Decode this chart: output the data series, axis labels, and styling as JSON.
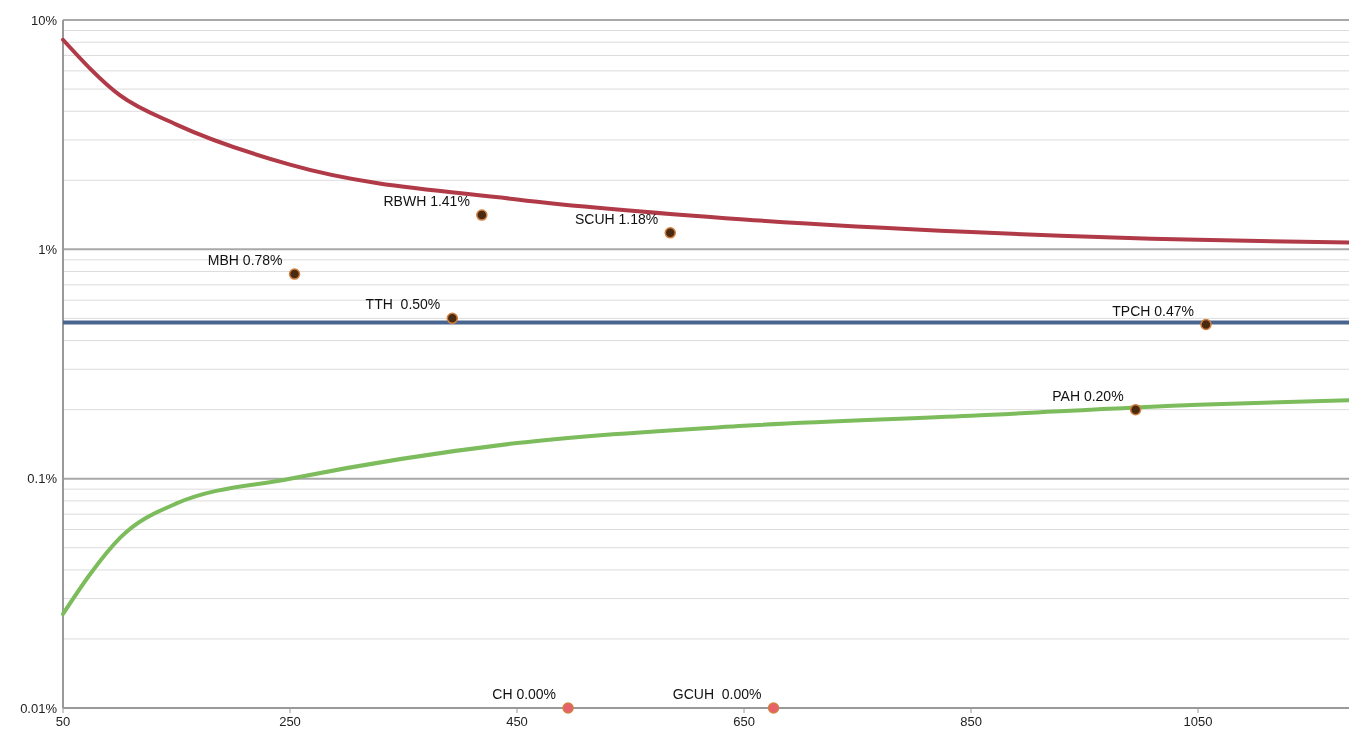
{
  "chart_data": {
    "type": "scatter",
    "log": "y",
    "grid": "y",
    "xlim": [
      50,
      1183
    ],
    "xticks": [
      50,
      250,
      450,
      650,
      850,
      1050
    ],
    "ylim": [
      0.01,
      10
    ],
    "yticks": [
      {
        "value": 0.01,
        "label": "0.01%"
      },
      {
        "value": 0.02,
        "label": null
      },
      {
        "value": 0.03,
        "label": null
      },
      {
        "value": 0.04,
        "label": null
      },
      {
        "value": 0.05,
        "label": null
      },
      {
        "value": 0.06,
        "label": null
      },
      {
        "value": 0.07,
        "label": null
      },
      {
        "value": 0.08,
        "label": null
      },
      {
        "value": 0.09,
        "label": null
      },
      {
        "value": 0.1,
        "label": "0.1%"
      },
      {
        "value": 0.2,
        "label": null
      },
      {
        "value": 0.3,
        "label": null
      },
      {
        "value": 0.4,
        "label": null
      },
      {
        "value": 0.5,
        "label": null
      },
      {
        "value": 0.6,
        "label": null
      },
      {
        "value": 0.7,
        "label": null
      },
      {
        "value": 0.8,
        "label": null
      },
      {
        "value": 0.9,
        "label": null
      },
      {
        "value": 1,
        "label": "1%"
      },
      {
        "value": 2,
        "label": null
      },
      {
        "value": 3,
        "label": null
      },
      {
        "value": 4,
        "label": null
      },
      {
        "value": 5,
        "label": null
      },
      {
        "value": 6,
        "label": null
      },
      {
        "value": 7,
        "label": null
      },
      {
        "value": 8,
        "label": null
      },
      {
        "value": 9,
        "label": null
      },
      {
        "value": 10,
        "label": "10%"
      }
    ],
    "ref_lines": [
      {
        "axis": "y",
        "value": 0.48,
        "color": "#4a6490"
      }
    ],
    "series": [
      {
        "type": "line",
        "color": "#b03a48",
        "marker": "none",
        "x": [
          50,
          100,
          150,
          250,
          450,
          650,
          850,
          1050,
          1183
        ],
        "values": [
          8.2,
          4.7,
          3.5,
          2.34,
          1.65,
          1.35,
          1.19,
          1.1,
          1.07
        ]
      },
      {
        "type": "line",
        "color": "#7cbc5c",
        "marker": "none",
        "x": [
          50,
          75,
          100,
          150,
          250,
          450,
          650,
          850,
          1050,
          1183
        ],
        "values": [
          0.0257,
          0.039,
          0.055,
          0.078,
          0.1,
          0.143,
          0.17,
          0.188,
          0.21,
          0.22
        ]
      },
      {
        "color": "#4a2a10",
        "marker": "circle",
        "x": [
          419,
          585,
          254,
          393,
          1057,
          995
        ],
        "values": [
          1.41,
          1.18,
          0.78,
          0.5,
          0.47,
          0.2
        ],
        "value_labels": [
          "RBWH 1.41%",
          "SCUH 1.18%",
          "MBH 0.78%",
          "TTH  0.50%",
          "TPCH 0.47%",
          "PAH 0.20%"
        ]
      },
      {
        "color": "#e8606a",
        "marker": "circle",
        "x": [
          495,
          676
        ],
        "values": [
          0.01,
          0.01
        ],
        "value_labels": [
          "CH 0.00%",
          "GCUH  0.00%"
        ]
      }
    ]
  }
}
